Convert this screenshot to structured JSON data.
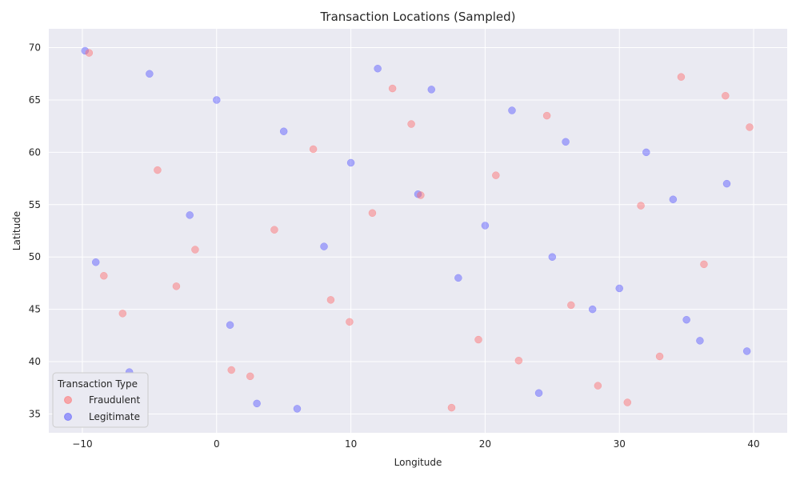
{
  "chart_data": {
    "type": "scatter",
    "title": "Transaction Locations (Sampled)",
    "xlabel": "Longitude",
    "ylabel": "Latitude",
    "xlim": [
      -12.5,
      42.5
    ],
    "ylim": [
      33.2,
      71.8
    ],
    "x_ticks": [
      -10,
      0,
      10,
      20,
      30,
      40
    ],
    "y_ticks": [
      35,
      40,
      45,
      50,
      55,
      60,
      65,
      70
    ],
    "x_tick_labels": [
      "−10",
      "0",
      "10",
      "20",
      "30",
      "40"
    ],
    "y_tick_labels": [
      "35",
      "40",
      "45",
      "50",
      "55",
      "60",
      "65",
      "70"
    ],
    "grid": true,
    "legend": {
      "title": "Transaction Type",
      "position": "bottom-left"
    },
    "series": [
      {
        "name": "Fraudulent",
        "color": "#ff6b6b",
        "x": [
          -9.5,
          7.2,
          19.5,
          26.4,
          37.9,
          15.2,
          33.0,
          -3.0,
          2.5,
          24.6,
          11.6,
          30.6,
          -1.6,
          8.5,
          20.8,
          36.3,
          -7.0,
          14.5,
          39.7,
          28.4,
          4.3,
          22.5,
          -4.4,
          17.5,
          34.6,
          9.9,
          -8.4,
          13.1,
          31.6,
          1.1
        ],
        "y": [
          69.5,
          60.3,
          42.1,
          45.4,
          65.4,
          55.9,
          40.5,
          47.2,
          38.6,
          63.5,
          54.2,
          36.1,
          50.7,
          45.9,
          57.8,
          49.3,
          44.6,
          62.7,
          62.4,
          37.7,
          52.6,
          40.1,
          58.3,
          35.6,
          67.2,
          43.8,
          48.2,
          66.1,
          54.9,
          39.2
        ]
      },
      {
        "name": "Legitimate",
        "color": "#5555ff",
        "x": [
          -9.8,
          -5.0,
          0.0,
          5.0,
          10.0,
          15.0,
          20.0,
          25.0,
          30.0,
          35.0,
          39.5,
          -8.0,
          3.0,
          12.0,
          22.0,
          32.0,
          38.0,
          -2.0,
          8.0,
          18.0,
          28.0,
          36.0,
          -6.5,
          6.0,
          16.0,
          26.0,
          34.0,
          -9.0,
          1.0,
          24.0
        ],
        "y": [
          69.7,
          67.5,
          65.0,
          62.0,
          59.0,
          56.0,
          53.0,
          50.0,
          47.0,
          44.0,
          41.0,
          38.0,
          36.0,
          68.0,
          64.0,
          60.0,
          57.0,
          54.0,
          51.0,
          48.0,
          45.0,
          42.0,
          39.0,
          35.5,
          66.0,
          61.0,
          55.5,
          49.5,
          43.5,
          37.0
        ]
      }
    ]
  }
}
